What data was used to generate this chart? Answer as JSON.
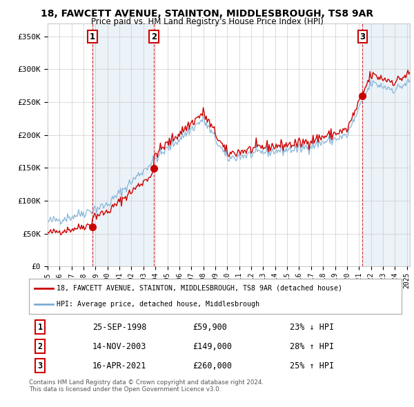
{
  "title1": "18, FAWCETT AVENUE, STAINTON, MIDDLESBROUGH, TS8 9AR",
  "title2": "Price paid vs. HM Land Registry's House Price Index (HPI)",
  "sale_dates_float": [
    1998.7417,
    2003.8667,
    2021.2917
  ],
  "sale_prices": [
    59900,
    149000,
    260000
  ],
  "sale_labels": [
    "1",
    "2",
    "3"
  ],
  "legend_line1": "18, FAWCETT AVENUE, STAINTON, MIDDLESBROUGH, TS8 9AR (detached house)",
  "legend_line2": "HPI: Average price, detached house, Middlesbrough",
  "table_rows": [
    [
      "1",
      "25-SEP-1998",
      "£59,900",
      "23% ↓ HPI"
    ],
    [
      "2",
      "14-NOV-2003",
      "£149,000",
      "28% ↑ HPI"
    ],
    [
      "3",
      "16-APR-2021",
      "£260,000",
      "25% ↑ HPI"
    ]
  ],
  "footer": "Contains HM Land Registry data © Crown copyright and database right 2024.\nThis data is licensed under the Open Government Licence v3.0.",
  "ylim": [
    0,
    370000
  ],
  "yticks": [
    0,
    50000,
    100000,
    150000,
    200000,
    250000,
    300000,
    350000
  ],
  "ytick_labels": [
    "£0",
    "£50K",
    "£100K",
    "£150K",
    "£200K",
    "£250K",
    "£300K",
    "£350K"
  ],
  "xlim_start": 1995.0,
  "xlim_end": 2025.25,
  "red_color": "#cc0000",
  "blue_color": "#7aadd4",
  "shade_color": "#ddeeff",
  "vline_color": "#cc0000",
  "grid_color": "#cccccc",
  "background_color": "#ffffff",
  "hpi_seed": 42
}
